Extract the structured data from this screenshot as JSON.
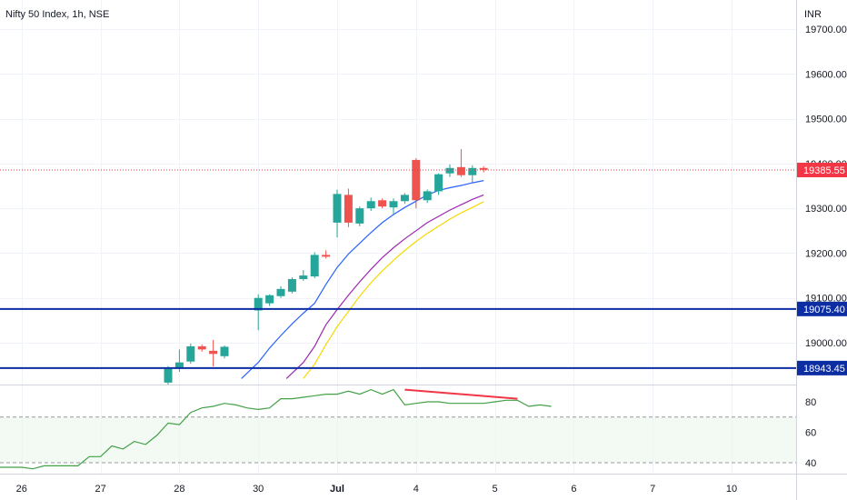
{
  "header": {
    "title": "Nifty 50 Index, 1h, NSE",
    "currency": "INR"
  },
  "chart_data": {
    "type": "candlestick",
    "price_axis": {
      "range": [
        18920,
        19760
      ],
      "ticks": [
        {
          "value": 19700,
          "label": "19700.00"
        },
        {
          "value": 19600,
          "label": "19600.00"
        },
        {
          "value": 19500,
          "label": "19500.00"
        },
        {
          "value": 19400,
          "label": "19400.00"
        },
        {
          "value": 19300,
          "label": "19300.00"
        },
        {
          "value": 19200,
          "label": "19200.00"
        },
        {
          "value": 19100,
          "label": "19100.00"
        },
        {
          "value": 19000,
          "label": "19000.00"
        }
      ]
    },
    "time_axis": {
      "ticks": [
        {
          "i": -22,
          "label": "26",
          "bold": false
        },
        {
          "i": -15,
          "label": "27",
          "bold": false
        },
        {
          "i": -8,
          "label": "28",
          "bold": false
        },
        {
          "i": -1,
          "label": "30",
          "bold": false
        },
        {
          "i": 6,
          "label": "Jul",
          "bold": true
        },
        {
          "i": 13,
          "label": "4",
          "bold": false
        },
        {
          "i": 20,
          "label": "5",
          "bold": false
        },
        {
          "i": 27,
          "label": "6",
          "bold": false
        },
        {
          "i": 34,
          "label": "7",
          "bold": false
        },
        {
          "i": 41,
          "label": "10",
          "bold": false
        }
      ]
    },
    "candles": [
      {
        "i": -9,
        "o": 18911,
        "h": 18948,
        "l": 18905,
        "c": 18942
      },
      {
        "i": -8,
        "o": 18942,
        "h": 18985,
        "l": 18935,
        "c": 18956
      },
      {
        "i": -7,
        "o": 18958,
        "h": 18998,
        "l": 18953,
        "c": 18992
      },
      {
        "i": -6,
        "o": 18992,
        "h": 18996,
        "l": 18980,
        "c": 18985
      },
      {
        "i": -5,
        "o": 18982,
        "h": 19006,
        "l": 18947,
        "c": 18975
      },
      {
        "i": -4,
        "o": 18970,
        "h": 18994,
        "l": 18965,
        "c": 18991
      },
      {
        "i": -1,
        "o": 19072,
        "h": 19108,
        "l": 19028,
        "c": 19100
      },
      {
        "i": 0,
        "o": 19088,
        "h": 19108,
        "l": 19082,
        "c": 19106
      },
      {
        "i": 1,
        "o": 19104,
        "h": 19126,
        "l": 19100,
        "c": 19120
      },
      {
        "i": 2,
        "o": 19114,
        "h": 19146,
        "l": 19110,
        "c": 19142
      },
      {
        "i": 3,
        "o": 19142,
        "h": 19162,
        "l": 19138,
        "c": 19150
      },
      {
        "i": 4,
        "o": 19148,
        "h": 19202,
        "l": 19144,
        "c": 19196
      },
      {
        "i": 5,
        "o": 19196,
        "h": 19206,
        "l": 19188,
        "c": 19192
      },
      {
        "i": 6,
        "o": 19268,
        "h": 19342,
        "l": 19235,
        "c": 19332
      },
      {
        "i": 7,
        "o": 19330,
        "h": 19344,
        "l": 19258,
        "c": 19268
      },
      {
        "i": 8,
        "o": 19266,
        "h": 19304,
        "l": 19260,
        "c": 19300
      },
      {
        "i": 9,
        "o": 19300,
        "h": 19324,
        "l": 19294,
        "c": 19316
      },
      {
        "i": 10,
        "o": 19318,
        "h": 19322,
        "l": 19300,
        "c": 19304
      },
      {
        "i": 11,
        "o": 19302,
        "h": 19322,
        "l": 19286,
        "c": 19316
      },
      {
        "i": 12,
        "o": 19316,
        "h": 19334,
        "l": 19310,
        "c": 19330
      },
      {
        "i": 13,
        "o": 19408,
        "h": 19412,
        "l": 19300,
        "c": 19318
      },
      {
        "i": 14,
        "o": 19318,
        "h": 19342,
        "l": 19312,
        "c": 19338
      },
      {
        "i": 15,
        "o": 19338,
        "h": 19378,
        "l": 19330,
        "c": 19376
      },
      {
        "i": 16,
        "o": 19378,
        "h": 19398,
        "l": 19370,
        "c": 19390
      },
      {
        "i": 17,
        "o": 19392,
        "h": 19432,
        "l": 19370,
        "c": 19374
      },
      {
        "i": 18,
        "o": 19374,
        "h": 19396,
        "l": 19358,
        "c": 19390
      },
      {
        "i": 19,
        "o": 19390,
        "h": 19394,
        "l": 19380,
        "c": 19386
      }
    ],
    "moving_averages": [
      {
        "color": "#2962ff",
        "points": [
          [
            -2.5,
            18920
          ],
          [
            -1,
            18956
          ],
          [
            0,
            18988
          ],
          [
            1,
            19016
          ],
          [
            2,
            19042
          ],
          [
            3,
            19066
          ],
          [
            4,
            19088
          ],
          [
            5,
            19130
          ],
          [
            6,
            19168
          ],
          [
            7,
            19198
          ],
          [
            8,
            19222
          ],
          [
            9,
            19246
          ],
          [
            10,
            19268
          ],
          [
            11,
            19286
          ],
          [
            12,
            19302
          ],
          [
            13,
            19316
          ],
          [
            14,
            19330
          ],
          [
            15,
            19340
          ],
          [
            16,
            19346
          ],
          [
            17,
            19351
          ],
          [
            18,
            19357
          ],
          [
            19,
            19362
          ]
        ]
      },
      {
        "color": "#9c27b0",
        "points": [
          [
            1.5,
            18920
          ],
          [
            3,
            18956
          ],
          [
            4,
            18992
          ],
          [
            5,
            19040
          ],
          [
            6,
            19074
          ],
          [
            7,
            19106
          ],
          [
            8,
            19136
          ],
          [
            9,
            19164
          ],
          [
            10,
            19190
          ],
          [
            11,
            19212
          ],
          [
            12,
            19232
          ],
          [
            13,
            19250
          ],
          [
            14,
            19268
          ],
          [
            15,
            19282
          ],
          [
            16,
            19296
          ],
          [
            17,
            19308
          ],
          [
            18,
            19320
          ],
          [
            19,
            19330
          ]
        ]
      },
      {
        "color": "#f5d800",
        "points": [
          [
            3,
            18920
          ],
          [
            4,
            18952
          ],
          [
            5,
            18996
          ],
          [
            6,
            19036
          ],
          [
            7,
            19070
          ],
          [
            8,
            19104
          ],
          [
            9,
            19134
          ],
          [
            10,
            19160
          ],
          [
            11,
            19184
          ],
          [
            12,
            19206
          ],
          [
            13,
            19226
          ],
          [
            14,
            19244
          ],
          [
            15,
            19260
          ],
          [
            16,
            19276
          ],
          [
            17,
            19290
          ],
          [
            18,
            19302
          ],
          [
            19,
            19315
          ]
        ]
      }
    ],
    "horizontal_levels": [
      {
        "value": 19075.4,
        "label": "19075.40",
        "color": "#0d2ea3"
      },
      {
        "value": 18943.45,
        "label": "18943.45",
        "color": "#0d2ea3"
      }
    ],
    "last_price": {
      "value": 19385.55,
      "label": "19385.55",
      "color": "#f23645"
    },
    "rsi": {
      "range": [
        32,
        93
      ],
      "band_low": 40,
      "band_high": 70,
      "ticks": [
        {
          "value": 80,
          "label": "80"
        },
        {
          "value": 60,
          "label": "60"
        },
        {
          "value": 40,
          "label": "40"
        }
      ],
      "color": "#43a047",
      "values": [
        [
          -27,
          36
        ],
        [
          -26,
          36
        ],
        [
          -25,
          37
        ],
        [
          -24,
          37
        ],
        [
          -23,
          37
        ],
        [
          -22,
          37
        ],
        [
          -21,
          36
        ],
        [
          -20,
          38
        ],
        [
          -19,
          38
        ],
        [
          -18,
          38
        ],
        [
          -17,
          38
        ],
        [
          -16,
          44
        ],
        [
          -15,
          44
        ],
        [
          -14,
          51
        ],
        [
          -13,
          49
        ],
        [
          -12,
          54
        ],
        [
          -11,
          52
        ],
        [
          -10,
          58
        ],
        [
          -9,
          66
        ],
        [
          -8,
          65
        ],
        [
          -7,
          73
        ],
        [
          -6,
          76
        ],
        [
          -5,
          77
        ],
        [
          -4,
          79
        ],
        [
          -3,
          78
        ],
        [
          -2,
          76
        ],
        [
          -1,
          75
        ],
        [
          0,
          76
        ],
        [
          1,
          82
        ],
        [
          2,
          82
        ],
        [
          3,
          83
        ],
        [
          4,
          84
        ],
        [
          5,
          85
        ],
        [
          6,
          85
        ],
        [
          7,
          87
        ],
        [
          8,
          85
        ],
        [
          9,
          88
        ],
        [
          10,
          85
        ],
        [
          11,
          88
        ],
        [
          12,
          78
        ],
        [
          13,
          79
        ],
        [
          14,
          80
        ],
        [
          15,
          80
        ],
        [
          16,
          79
        ],
        [
          17,
          79
        ],
        [
          18,
          79
        ],
        [
          19,
          79
        ],
        [
          20,
          80
        ],
        [
          21,
          81
        ],
        [
          22,
          81
        ],
        [
          23,
          77
        ],
        [
          24,
          78
        ],
        [
          25,
          77
        ]
      ],
      "divergence": [
        [
          12,
          88
        ],
        [
          22,
          82
        ]
      ],
      "divergence_color": "#f23645"
    }
  }
}
